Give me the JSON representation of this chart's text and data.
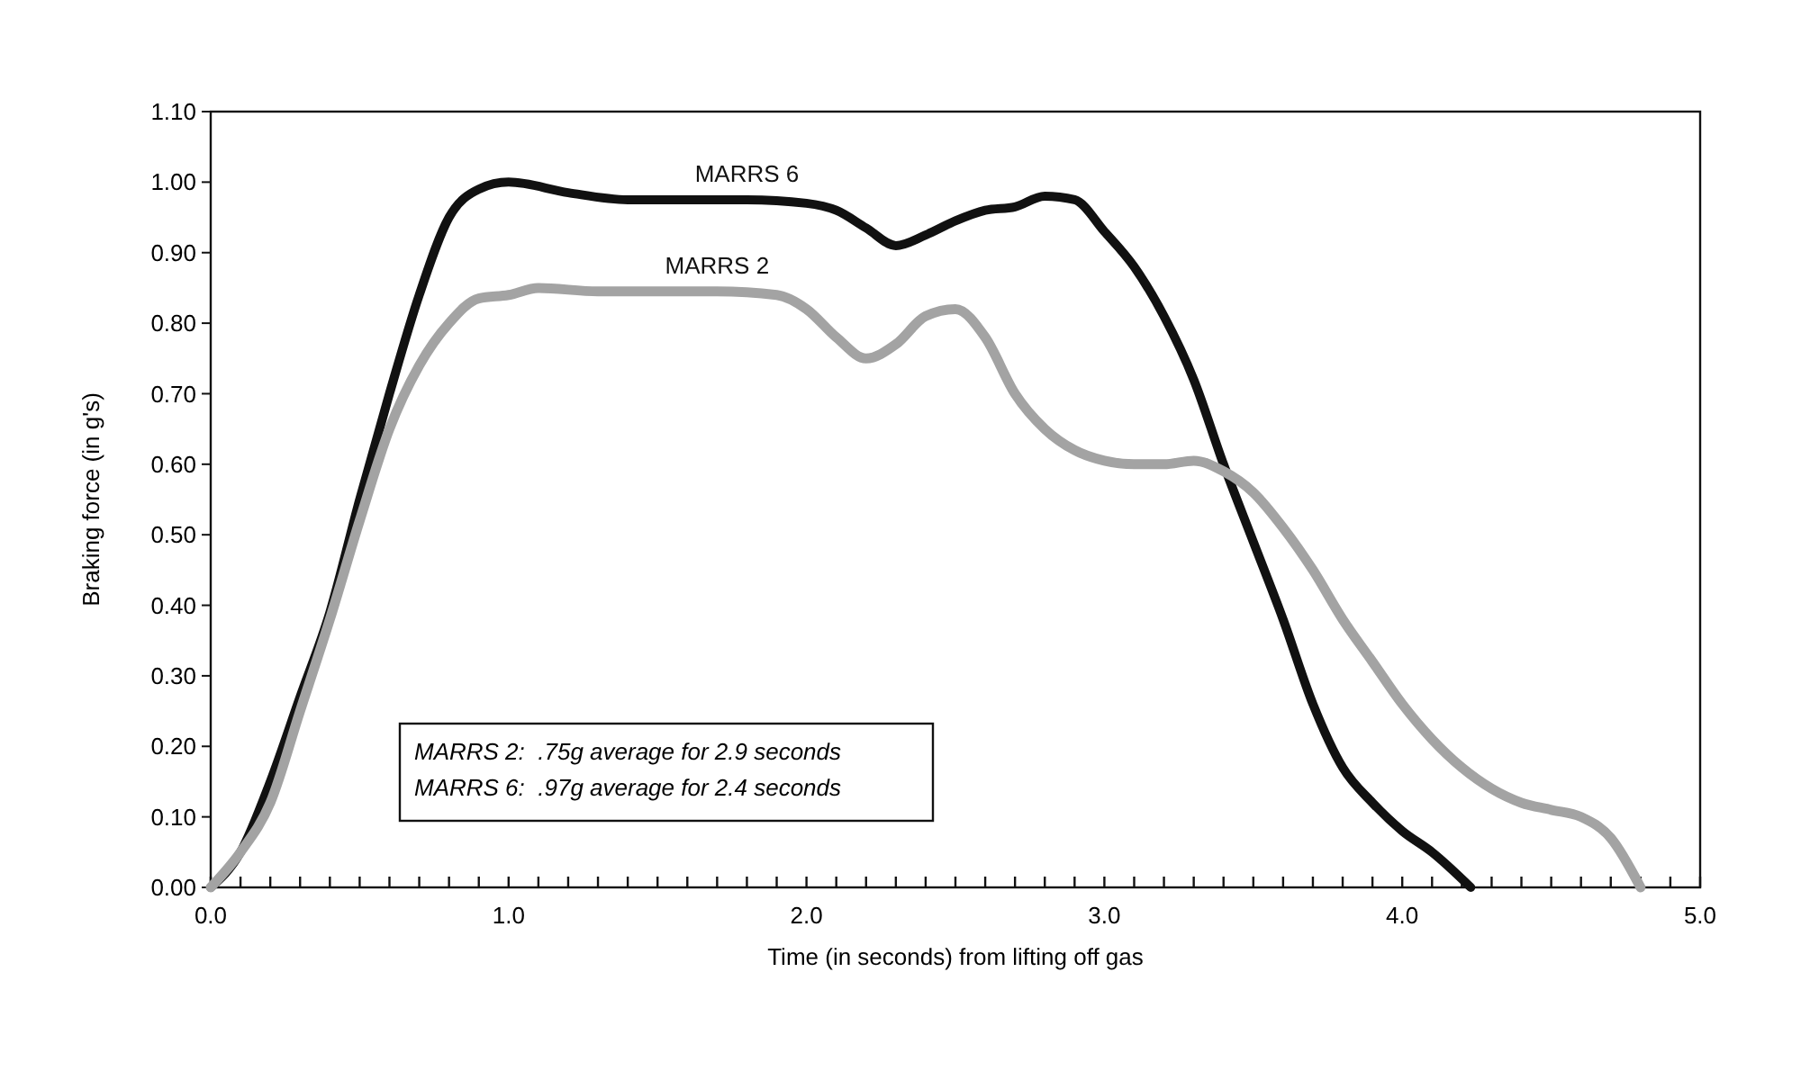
{
  "chart_data": {
    "type": "line",
    "xlabel": "Time (in seconds) from lifting off gas",
    "ylabel": "Braking force (in g's)",
    "xlim": [
      0,
      5
    ],
    "ylim": [
      0,
      1.1
    ],
    "xticks": [
      {
        "value": 0,
        "label": "0.0"
      },
      {
        "value": 0.1,
        "label": null
      },
      {
        "value": 0.2,
        "label": null
      },
      {
        "value": 0.3,
        "label": null
      },
      {
        "value": 0.4,
        "label": null
      },
      {
        "value": 0.5,
        "label": null
      },
      {
        "value": 0.6,
        "label": null
      },
      {
        "value": 0.7,
        "label": null
      },
      {
        "value": 0.8,
        "label": null
      },
      {
        "value": 0.9,
        "label": null
      },
      {
        "value": 1,
        "label": "1.0"
      },
      {
        "value": 1.1,
        "label": null
      },
      {
        "value": 1.2,
        "label": null
      },
      {
        "value": 1.3,
        "label": null
      },
      {
        "value": 1.4,
        "label": null
      },
      {
        "value": 1.5,
        "label": null
      },
      {
        "value": 1.6,
        "label": null
      },
      {
        "value": 1.7,
        "label": null
      },
      {
        "value": 1.8,
        "label": null
      },
      {
        "value": 1.9,
        "label": null
      },
      {
        "value": 2,
        "label": "2.0"
      },
      {
        "value": 2.1,
        "label": null
      },
      {
        "value": 2.2,
        "label": null
      },
      {
        "value": 2.3,
        "label": null
      },
      {
        "value": 2.4,
        "label": null
      },
      {
        "value": 2.5,
        "label": null
      },
      {
        "value": 2.6,
        "label": null
      },
      {
        "value": 2.7,
        "label": null
      },
      {
        "value": 2.8,
        "label": null
      },
      {
        "value": 2.9,
        "label": null
      },
      {
        "value": 3,
        "label": "3.0"
      },
      {
        "value": 3.1,
        "label": null
      },
      {
        "value": 3.2,
        "label": null
      },
      {
        "value": 3.3,
        "label": null
      },
      {
        "value": 3.4,
        "label": null
      },
      {
        "value": 3.5,
        "label": null
      },
      {
        "value": 3.6,
        "label": null
      },
      {
        "value": 3.7,
        "label": null
      },
      {
        "value": 3.8,
        "label": null
      },
      {
        "value": 3.9,
        "label": null
      },
      {
        "value": 4,
        "label": "4.0"
      },
      {
        "value": 4.1,
        "label": null
      },
      {
        "value": 4.2,
        "label": null
      },
      {
        "value": 4.3,
        "label": null
      },
      {
        "value": 4.4,
        "label": null
      },
      {
        "value": 4.5,
        "label": null
      },
      {
        "value": 4.6,
        "label": null
      },
      {
        "value": 4.7,
        "label": null
      },
      {
        "value": 4.8,
        "label": null
      },
      {
        "value": 4.9,
        "label": null
      },
      {
        "value": 5,
        "label": "5.0"
      }
    ],
    "yticks": [
      {
        "value": 0,
        "label": "0.00"
      },
      {
        "value": 0.1,
        "label": "0.10"
      },
      {
        "value": 0.2,
        "label": "0.20"
      },
      {
        "value": 0.3,
        "label": "0.30"
      },
      {
        "value": 0.4,
        "label": "0.40"
      },
      {
        "value": 0.5,
        "label": "0.50"
      },
      {
        "value": 0.6,
        "label": "0.60"
      },
      {
        "value": 0.7,
        "label": "0.70"
      },
      {
        "value": 0.8,
        "label": "0.80"
      },
      {
        "value": 0.9,
        "label": "0.90"
      },
      {
        "value": 1,
        "label": "1.00"
      },
      {
        "value": 1.1,
        "label": "1.10"
      }
    ],
    "grid": false,
    "annotations": [
      "MARRS 2:  .75g average for 2.9 seconds",
      "MARRS 6:  .97g average for 2.4 seconds"
    ],
    "series": [
      {
        "name": "MARRS 6",
        "color": "#111111",
        "x": [
          0,
          0.1,
          0.2,
          0.3,
          0.4,
          0.5,
          0.6,
          0.7,
          0.8,
          0.9,
          1.0,
          1.2,
          1.4,
          1.6,
          1.8,
          2.0,
          2.1,
          2.2,
          2.3,
          2.4,
          2.5,
          2.6,
          2.7,
          2.8,
          2.9,
          3.0,
          3.1,
          3.2,
          3.3,
          3.4,
          3.5,
          3.6,
          3.7,
          3.8,
          3.9,
          4.0,
          4.1,
          4.23
        ],
        "values": [
          0,
          0.05,
          0.15,
          0.27,
          0.39,
          0.55,
          0.7,
          0.84,
          0.95,
          0.99,
          1.0,
          0.985,
          0.975,
          0.975,
          0.975,
          0.97,
          0.96,
          0.935,
          0.91,
          0.925,
          0.945,
          0.96,
          0.965,
          0.98,
          0.975,
          0.93,
          0.88,
          0.81,
          0.72,
          0.6,
          0.49,
          0.38,
          0.26,
          0.17,
          0.12,
          0.08,
          0.05,
          0
        ]
      },
      {
        "name": "MARRS 2",
        "color": "#a3a3a3",
        "x": [
          0,
          0.1,
          0.2,
          0.3,
          0.4,
          0.5,
          0.6,
          0.7,
          0.8,
          0.9,
          1.0,
          1.1,
          1.3,
          1.5,
          1.7,
          1.9,
          2.0,
          2.1,
          2.2,
          2.3,
          2.4,
          2.5,
          2.6,
          2.7,
          2.8,
          2.9,
          3.0,
          3.1,
          3.2,
          3.3,
          3.4,
          3.5,
          3.6,
          3.7,
          3.8,
          3.9,
          4.0,
          4.1,
          4.2,
          4.3,
          4.4,
          4.5,
          4.6,
          4.7,
          4.8
        ],
        "values": [
          0,
          0.05,
          0.12,
          0.25,
          0.38,
          0.52,
          0.65,
          0.74,
          0.8,
          0.835,
          0.84,
          0.85,
          0.845,
          0.845,
          0.845,
          0.84,
          0.82,
          0.78,
          0.75,
          0.77,
          0.81,
          0.82,
          0.78,
          0.7,
          0.65,
          0.62,
          0.605,
          0.6,
          0.6,
          0.605,
          0.59,
          0.56,
          0.51,
          0.45,
          0.38,
          0.32,
          0.26,
          0.21,
          0.17,
          0.14,
          0.12,
          0.11,
          0.1,
          0.07,
          0
        ]
      }
    ]
  }
}
